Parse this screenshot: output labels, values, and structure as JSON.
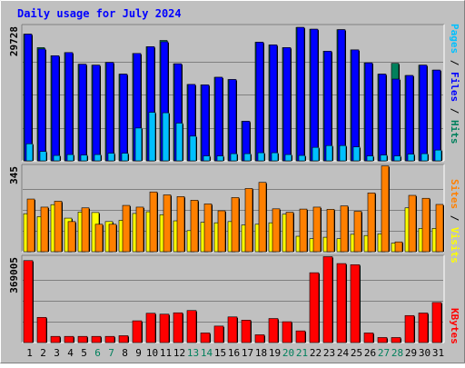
{
  "title": "Daily usage for July 2024",
  "colors": {
    "background": "#c0c0c0",
    "title": "#0000ff",
    "hits": "#00805c",
    "files": "#0000ff",
    "pages": "#00c0ff",
    "visits": "#ffff00",
    "sites": "#ff8000",
    "kbytes": "#ff0000",
    "weekend_label": "#00805c",
    "weekday_label": "#000000"
  },
  "chart_data": [
    {
      "type": "bar",
      "panel": "hits-files-pages",
      "ymax_label": "29728",
      "ylim": [
        0,
        29728
      ],
      "legend": {
        "pages": "Pages",
        "sep1": " / ",
        "files": "Files",
        "sep2": " / ",
        "hits": "Hits"
      },
      "categories": [
        "1",
        "2",
        "3",
        "4",
        "5",
        "6",
        "7",
        "8",
        "9",
        "10",
        "11",
        "12",
        "13",
        "14",
        "15",
        "16",
        "17",
        "18",
        "19",
        "20",
        "21",
        "22",
        "23",
        "24",
        "25",
        "26",
        "27",
        "28",
        "29",
        "30",
        "31"
      ],
      "series": [
        {
          "name": "Hits",
          "values": [
            28200,
            25200,
            23400,
            24100,
            21500,
            21300,
            21900,
            19300,
            23900,
            25400,
            26800,
            21600,
            17000,
            16900,
            18600,
            18100,
            8800,
            26400,
            25800,
            25200,
            29700,
            29300,
            24400,
            29200,
            24700,
            21800,
            19300,
            21700,
            19000,
            21300,
            20200
          ]
        },
        {
          "name": "Files",
          "values": [
            28200,
            24900,
            23400,
            24100,
            21500,
            21300,
            21900,
            19300,
            23900,
            25400,
            26500,
            21600,
            17000,
            16900,
            18600,
            18100,
            8800,
            26400,
            25800,
            25200,
            29700,
            29300,
            24400,
            29200,
            24700,
            21800,
            19300,
            18200,
            19000,
            21300,
            20200
          ]
        },
        {
          "name": "Pages",
          "values": [
            3800,
            2100,
            1200,
            1400,
            1300,
            1400,
            1700,
            1700,
            7300,
            10800,
            10700,
            8400,
            5500,
            1100,
            1100,
            1600,
            1600,
            1800,
            1800,
            1400,
            1200,
            3000,
            3400,
            3400,
            3100,
            1100,
            1300,
            1100,
            1500,
            1600,
            2400
          ]
        }
      ]
    },
    {
      "type": "bar",
      "panel": "visits-sites",
      "ymax_label": "345",
      "ylim": [
        0,
        345
      ],
      "legend": {
        "sites": "Sites",
        "sep1": " / ",
        "visits": "Visits"
      },
      "categories": [
        "1",
        "2",
        "3",
        "4",
        "5",
        "6",
        "7",
        "8",
        "9",
        "10",
        "11",
        "12",
        "13",
        "14",
        "15",
        "16",
        "17",
        "18",
        "19",
        "20",
        "21",
        "22",
        "23",
        "24",
        "25",
        "26",
        "27",
        "28",
        "29",
        "30",
        "31"
      ],
      "series": [
        {
          "name": "Visits",
          "values": [
            155,
            143,
            192,
            137,
            162,
            160,
            123,
            128,
            156,
            163,
            151,
            126,
            86,
            120,
            118,
            123,
            109,
            112,
            118,
            153,
            63,
            53,
            59,
            53,
            71,
            66,
            73,
            35,
            179,
            95,
            95
          ]
        },
        {
          "name": "Sites",
          "values": [
            215,
            182,
            206,
            123,
            179,
            112,
            112,
            189,
            182,
            244,
            232,
            225,
            210,
            195,
            167,
            221,
            258,
            283,
            175,
            161,
            174,
            182,
            173,
            187,
            165,
            240,
            350,
            40,
            230,
            218,
            193
          ]
        }
      ]
    },
    {
      "type": "bar",
      "panel": "kbytes",
      "ymax_label": "369005",
      "ylim": [
        0,
        369005
      ],
      "legend": {
        "kbytes": "KBytes"
      },
      "categories": [
        "1",
        "2",
        "3",
        "4",
        "5",
        "6",
        "7",
        "8",
        "9",
        "10",
        "11",
        "12",
        "13",
        "14",
        "15",
        "16",
        "17",
        "18",
        "19",
        "20",
        "21",
        "22",
        "23",
        "24",
        "25",
        "26",
        "27",
        "28",
        "29",
        "30",
        "31"
      ],
      "series": [
        {
          "name": "KBytes",
          "values": [
            358000,
            110000,
            27000,
            27000,
            27000,
            27000,
            27000,
            30000,
            95000,
            128000,
            124000,
            130000,
            140000,
            42000,
            72000,
            112000,
            98000,
            34000,
            105000,
            91000,
            51000,
            305000,
            375000,
            345000,
            340000,
            42000,
            22000,
            22000,
            118000,
            129000,
            175000
          ]
        }
      ]
    }
  ],
  "weekend_days": [
    "6",
    "7",
    "13",
    "14",
    "20",
    "21",
    "27",
    "28"
  ]
}
